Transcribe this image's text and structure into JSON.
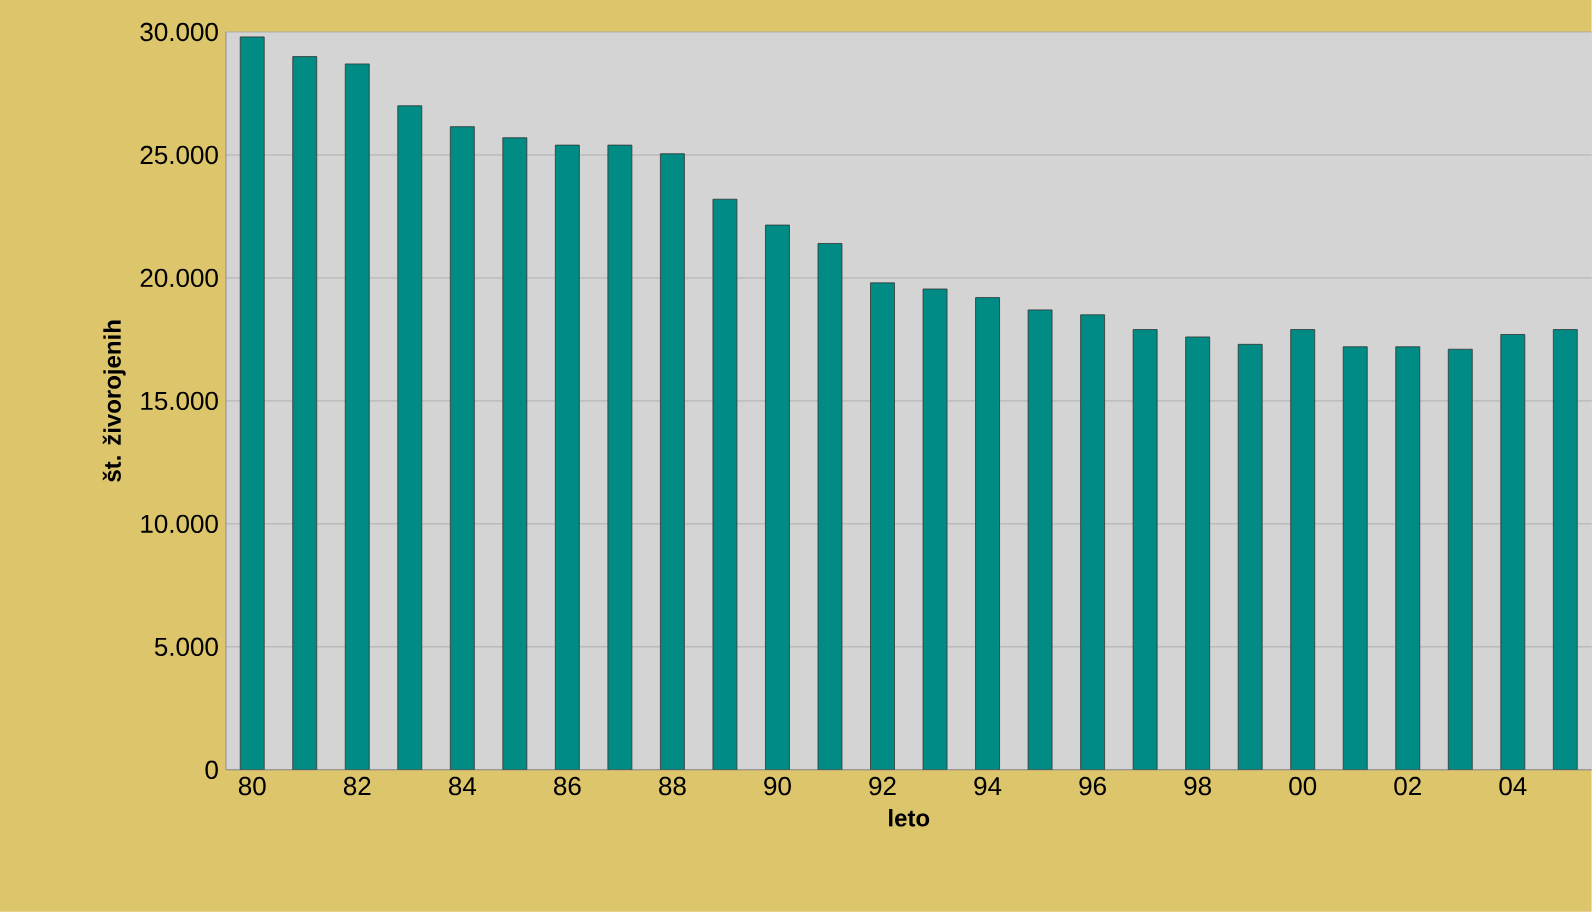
{
  "chart_data": {
    "type": "bar",
    "xlabel": "leto",
    "ylabel": "št. živorojenih",
    "categories": [
      "80",
      null,
      "82",
      null,
      "84",
      null,
      "86",
      null,
      "88",
      null,
      "90",
      null,
      "92",
      null,
      "94",
      null,
      "96",
      null,
      "98",
      null,
      "00",
      null,
      "02",
      null,
      "04",
      null
    ],
    "values": [
      29800,
      29000,
      28700,
      27000,
      26150,
      25700,
      25400,
      25400,
      25050,
      23200,
      22150,
      21400,
      19800,
      19550,
      19200,
      18700,
      18500,
      17900,
      17600,
      17300,
      17900,
      17200,
      17200,
      17100,
      17700,
      17900
    ],
    "color": "#008b84",
    "ylim": [
      0,
      30000
    ],
    "yticks": [
      0,
      {
        "value": 5000,
        "label": "5.000"
      },
      {
        "value": 10000,
        "label": "10.000"
      },
      {
        "value": 15000,
        "label": "15.000"
      },
      {
        "value": 20000,
        "label": "20.000"
      },
      {
        "value": 25000,
        "label": "25.000"
      },
      {
        "value": 30000,
        "label": "30.000"
      }
    ],
    "grid": "y"
  }
}
